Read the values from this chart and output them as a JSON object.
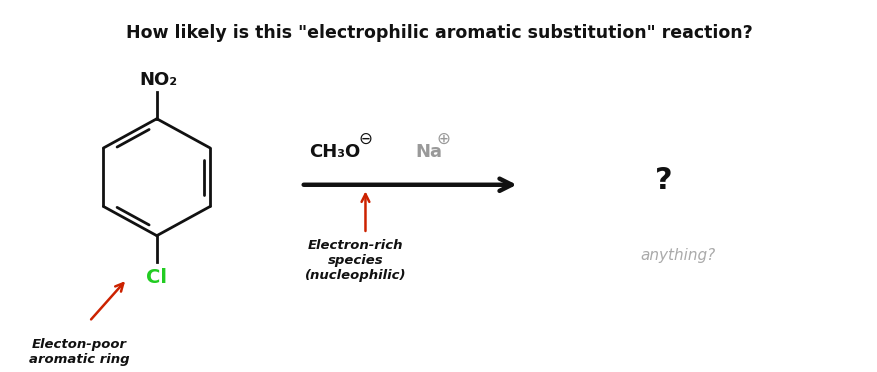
{
  "title": "How likely is this \"electrophilic aromatic substitution\" reaction?",
  "title_fontsize": 12.5,
  "title_fontweight": "bold",
  "background_color": "#ffffff",
  "no2_label": "NO₂",
  "cl_label": "Cl",
  "cl_color": "#22cc22",
  "reagent_ch3o": "CH₃O",
  "reagent_na": "Na",
  "question_mark": "?",
  "anything_label": "anything?",
  "anything_color": "#aaaaaa",
  "label_electron_rich": "Electron-rich\nspecies\n(nucleophilic)",
  "label_electon_poor": "Electon-poor\naromatic ring",
  "red_color": "#cc2200",
  "black_color": "#111111",
  "gray_color": "#999999"
}
